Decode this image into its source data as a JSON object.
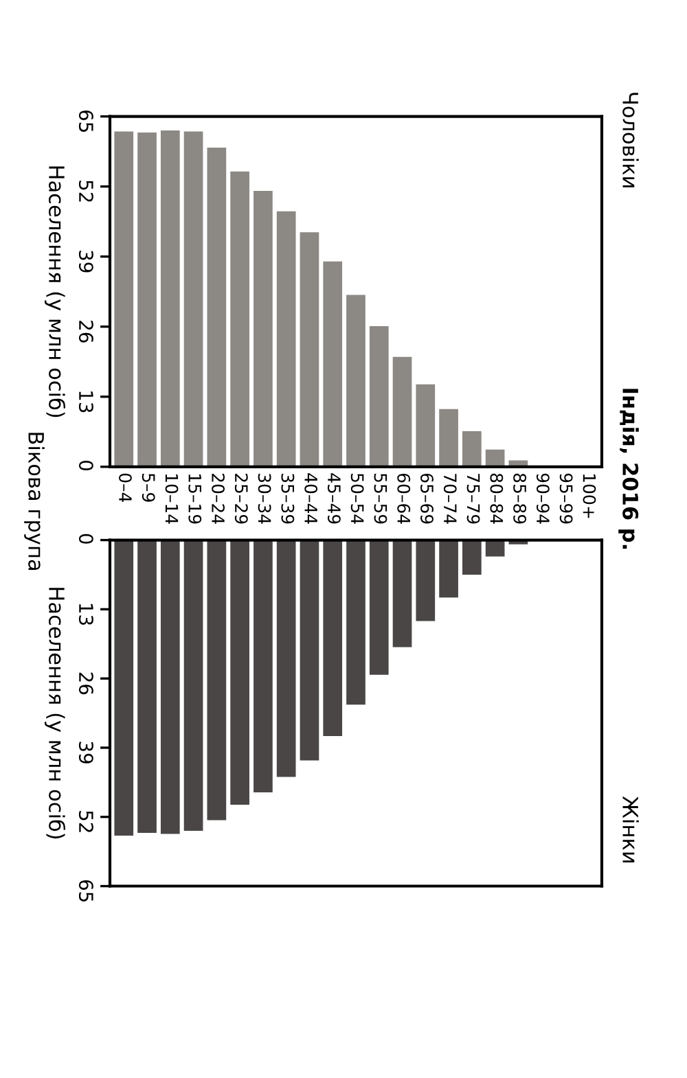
{
  "chart_data": [
    {
      "type": "bar",
      "ylabel": "Населення (у млн осіб)",
      "annotations": [
        "Чоловіки",
        "Вікова група",
        "Індія, 2016 р."
      ],
      "categories": [
        "0–4",
        "5–9",
        "10–14",
        "15–19",
        "20–24",
        "25–29",
        "30–34",
        "35–39",
        "40–44",
        "45–49",
        "50–54",
        "55–59",
        "60–64",
        "65–69",
        "70–74",
        "75–79",
        "80–84",
        "85–89",
        "90–94",
        "95–99",
        "100+"
      ],
      "values": [
        62.2,
        62.0,
        62.4,
        62.2,
        59.2,
        54.8,
        51.2,
        47.4,
        43.5,
        38.1,
        31.9,
        26.1,
        20.4,
        15.3,
        10.7,
        6.6,
        3.2,
        1.2,
        0.2,
        0,
        0
      ],
      "color": "#8c8884",
      "ylim": [
        0,
        65
      ],
      "yticks": [
        0,
        13,
        26,
        39,
        52,
        65
      ],
      "grid": false
    },
    {
      "type": "bar",
      "ylabel": "Населення (у млн осіб)",
      "annotations": [
        "Жінки"
      ],
      "categories": [
        null,
        null,
        null,
        null,
        null,
        null,
        null,
        null,
        null,
        null,
        null,
        null,
        null,
        null,
        null,
        null,
        null,
        null,
        null,
        null,
        null
      ],
      "values": [
        55.5,
        55.0,
        55.2,
        54.6,
        52.6,
        49.7,
        47.4,
        44.5,
        41.4,
        36.8,
        30.9,
        25.3,
        20.1,
        15.2,
        10.8,
        6.5,
        3.1,
        0.8,
        0.1,
        0,
        0
      ],
      "color": "#4a4646",
      "ylim": [
        65,
        0
      ],
      "yticks": [
        0,
        13,
        26,
        39,
        52,
        65
      ],
      "grid": false
    }
  ]
}
